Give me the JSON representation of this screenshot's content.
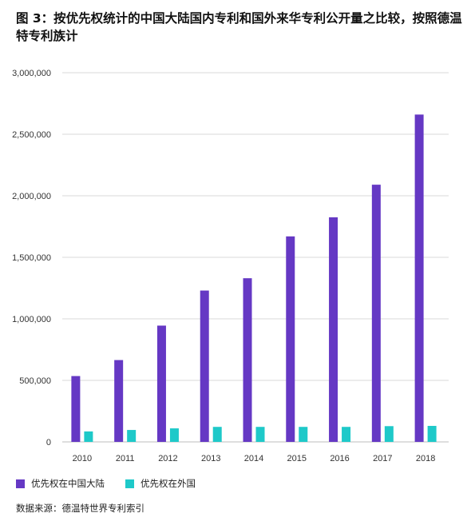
{
  "title": "图 3：按优先权统计的中国大陆国内专利和国外来华专利公开量之比较，按照德温特专利族计",
  "source": "数据来源：德温特世界专利索引",
  "colors": {
    "domestic": "#6538c4",
    "foreign": "#1ec9c9",
    "grid": "#d9d9d9",
    "baseline": "#bdbdbd"
  },
  "legend": [
    {
      "label": "优先权在中国大陆",
      "color": "#6538c4"
    },
    {
      "label": "优先权在外国",
      "color": "#1ec9c9"
    }
  ],
  "chart_data": {
    "type": "bar",
    "title": "",
    "xlabel": "",
    "ylabel": "",
    "categories": [
      "2010",
      "2011",
      "2012",
      "2013",
      "2014",
      "2015",
      "2016",
      "2017",
      "2018"
    ],
    "ylim": [
      0,
      3000000
    ],
    "yticks": [
      0,
      500000,
      1000000,
      1500000,
      2000000,
      2500000,
      3000000
    ],
    "ytick_labels": [
      "0",
      "500,000",
      "1,000,000",
      "1,500,000",
      "2,000,000",
      "2,500,000",
      "3,000,000"
    ],
    "grid": true,
    "legend_position": "bottom-left",
    "series": [
      {
        "name": "优先权在中国大陆",
        "color": "#6538c4",
        "values": [
          535000,
          665000,
          945000,
          1230000,
          1330000,
          1670000,
          1825000,
          2090000,
          2660000
        ]
      },
      {
        "name": "优先权在外国",
        "color": "#1ec9c9",
        "values": [
          85000,
          97000,
          110000,
          122000,
          122000,
          122000,
          122000,
          128000,
          130000
        ]
      }
    ]
  }
}
